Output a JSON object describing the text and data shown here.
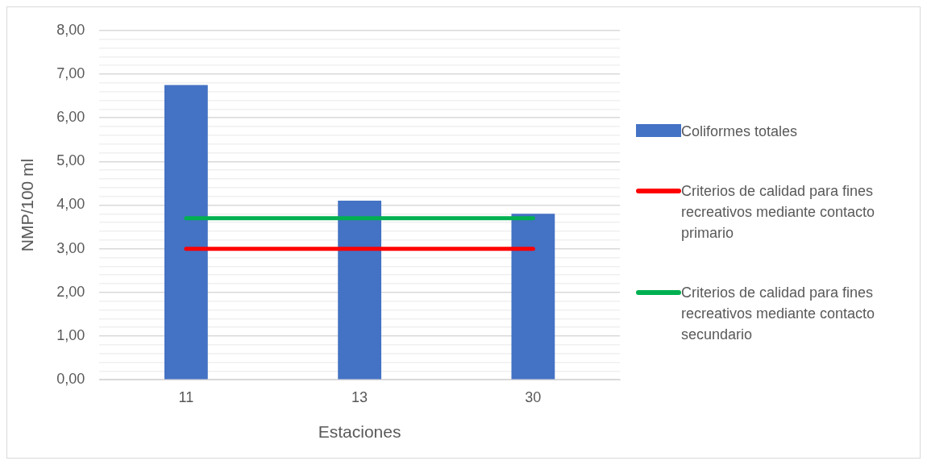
{
  "chart_data": {
    "type": "bar",
    "xlabel": "Estaciones",
    "ylabel": "NMP/100 ml",
    "categories": [
      "11",
      "13",
      "30"
    ],
    "series": [
      {
        "name": "Coliformes totales",
        "color": "#4472c4",
        "values": [
          6.75,
          4.1,
          3.8
        ]
      },
      {
        "name": "Criterios de calidad para fines recreativos mediante contacto primario",
        "type": "line",
        "color": "#ff0000",
        "values": [
          3.0,
          3.0,
          3.0
        ]
      },
      {
        "name": "Criterios de calidad para fines recreativos mediante contacto secundario",
        "type": "line",
        "color": "#00b050",
        "values": [
          3.7,
          3.7,
          3.7
        ]
      }
    ],
    "ylim": [
      0,
      8
    ],
    "yticks": [
      {
        "value": 0,
        "label": "0,00"
      },
      {
        "value": 0.2,
        "label": null
      },
      {
        "value": 0.4,
        "label": null
      },
      {
        "value": 0.6,
        "label": null
      },
      {
        "value": 0.8,
        "label": null
      },
      {
        "value": 1,
        "label": "1,00"
      },
      {
        "value": 1.2,
        "label": null
      },
      {
        "value": 1.4,
        "label": null
      },
      {
        "value": 1.6,
        "label": null
      },
      {
        "value": 1.8,
        "label": null
      },
      {
        "value": 2,
        "label": "2,00"
      },
      {
        "value": 2.2,
        "label": null
      },
      {
        "value": 2.4,
        "label": null
      },
      {
        "value": 2.6,
        "label": null
      },
      {
        "value": 2.8,
        "label": null
      },
      {
        "value": 3,
        "label": "3,00"
      },
      {
        "value": 3.2,
        "label": null
      },
      {
        "value": 3.4,
        "label": null
      },
      {
        "value": 3.6,
        "label": null
      },
      {
        "value": 3.8,
        "label": null
      },
      {
        "value": 4,
        "label": "4,00"
      },
      {
        "value": 4.2,
        "label": null
      },
      {
        "value": 4.4,
        "label": null
      },
      {
        "value": 4.6,
        "label": null
      },
      {
        "value": 4.8,
        "label": null
      },
      {
        "value": 5,
        "label": "5,00"
      },
      {
        "value": 5.2,
        "label": null
      },
      {
        "value": 5.4,
        "label": null
      },
      {
        "value": 5.6,
        "label": null
      },
      {
        "value": 5.8,
        "label": null
      },
      {
        "value": 6,
        "label": "6,00"
      },
      {
        "value": 6.2,
        "label": null
      },
      {
        "value": 6.4,
        "label": null
      },
      {
        "value": 6.6,
        "label": null
      },
      {
        "value": 6.8,
        "label": null
      },
      {
        "value": 7,
        "label": "7,00"
      },
      {
        "value": 7.2,
        "label": null
      },
      {
        "value": 7.4,
        "label": null
      },
      {
        "value": 7.6,
        "label": null
      },
      {
        "value": 7.8,
        "label": null
      },
      {
        "value": 8,
        "label": "8,00"
      }
    ],
    "grid": "y",
    "legend": "right"
  }
}
